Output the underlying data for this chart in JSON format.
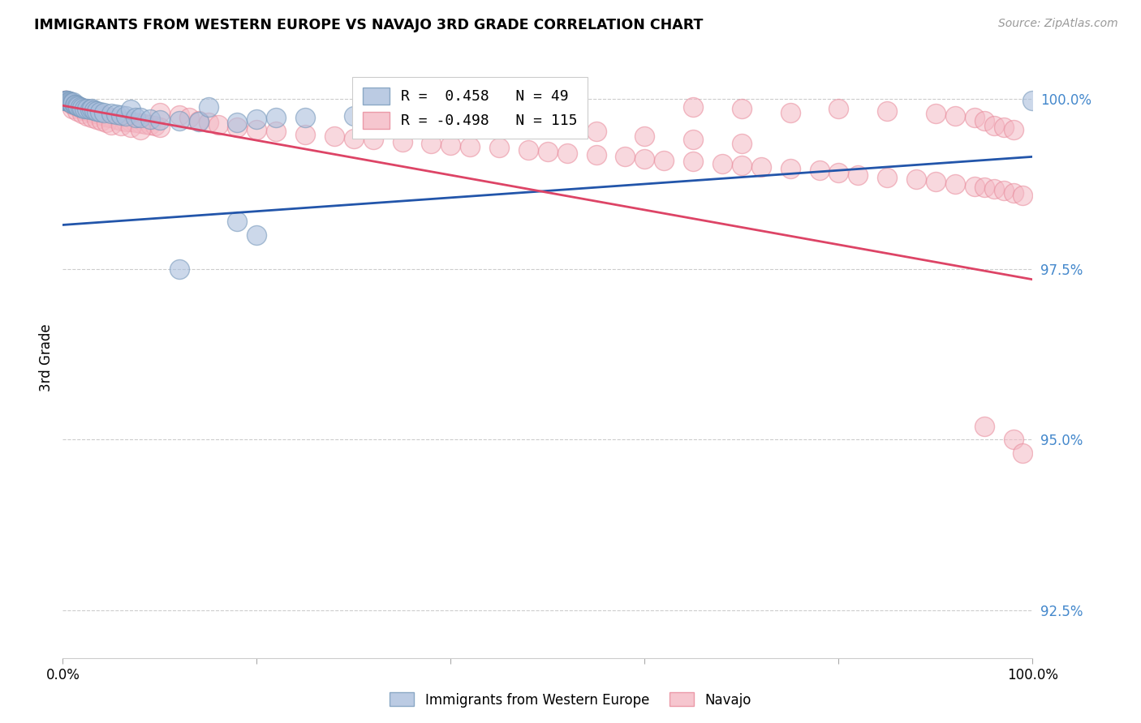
{
  "title": "IMMIGRANTS FROM WESTERN EUROPE VS NAVAJO 3RD GRADE CORRELATION CHART",
  "source_text": "Source: ZipAtlas.com",
  "ylabel": "3rd Grade",
  "legend_labels": [
    "Immigrants from Western Europe",
    "Navajo"
  ],
  "blue_r_label": "R =  0.458",
  "blue_n_label": "N = 49",
  "pink_r_label": "R = -0.498",
  "pink_n_label": "N = 115",
  "xlim": [
    0.0,
    1.0
  ],
  "ylim": [
    0.918,
    1.006
  ],
  "yticks": [
    0.925,
    0.95,
    0.975,
    1.0
  ],
  "ytick_labels": [
    "92.5%",
    "95.0%",
    "97.5%",
    "100.0%"
  ],
  "xticks": [
    0.0,
    0.2,
    0.4,
    0.6,
    0.8,
    1.0
  ],
  "xtick_labels": [
    "0.0%",
    "",
    "",
    "",
    "",
    "100.0%"
  ],
  "background_color": "#ffffff",
  "blue_fill_color": "#aabfdd",
  "blue_edge_color": "#7799bb",
  "pink_fill_color": "#f4b8c4",
  "pink_edge_color": "#e88899",
  "blue_line_color": "#2255aa",
  "pink_line_color": "#dd4466",
  "tick_color": "#aaaaaa",
  "grid_color": "#cccccc",
  "yticklabel_color": "#4488cc",
  "blue_trendline_x": [
    0.0,
    1.0
  ],
  "blue_trendline_y": [
    0.9815,
    0.9915
  ],
  "pink_trendline_x": [
    0.0,
    1.0
  ],
  "pink_trendline_y": [
    0.999,
    0.9735
  ],
  "blue_dots": [
    [
      0.002,
      0.9998
    ],
    [
      0.003,
      0.9998
    ],
    [
      0.004,
      0.9997
    ],
    [
      0.005,
      0.9997
    ],
    [
      0.006,
      0.9996
    ],
    [
      0.007,
      0.9996
    ],
    [
      0.008,
      0.9995
    ],
    [
      0.009,
      0.9994
    ],
    [
      0.01,
      0.9993
    ],
    [
      0.011,
      0.9995
    ],
    [
      0.012,
      0.9992
    ],
    [
      0.013,
      0.9991
    ],
    [
      0.015,
      0.999
    ],
    [
      0.016,
      0.9989
    ],
    [
      0.018,
      0.9988
    ],
    [
      0.02,
      0.9987
    ],
    [
      0.022,
      0.9986
    ],
    [
      0.025,
      0.9985
    ],
    [
      0.028,
      0.9984
    ],
    [
      0.03,
      0.9985
    ],
    [
      0.032,
      0.9983
    ],
    [
      0.035,
      0.9982
    ],
    [
      0.038,
      0.9981
    ],
    [
      0.042,
      0.998
    ],
    [
      0.05,
      0.9978
    ],
    [
      0.055,
      0.9977
    ],
    [
      0.06,
      0.9976
    ],
    [
      0.065,
      0.9975
    ],
    [
      0.07,
      0.9984
    ],
    [
      0.075,
      0.9973
    ],
    [
      0.08,
      0.9972
    ],
    [
      0.09,
      0.997
    ],
    [
      0.1,
      0.9969
    ],
    [
      0.12,
      0.9968
    ],
    [
      0.14,
      0.9967
    ],
    [
      0.15,
      0.9988
    ],
    [
      0.18,
      0.9965
    ],
    [
      0.2,
      0.997
    ],
    [
      0.22,
      0.9973
    ],
    [
      0.25,
      0.9972
    ],
    [
      0.3,
      0.9975
    ],
    [
      0.35,
      0.9971
    ],
    [
      0.4,
      0.9969
    ],
    [
      0.45,
      0.9968
    ],
    [
      0.5,
      0.9967
    ],
    [
      0.18,
      0.982
    ],
    [
      0.2,
      0.98
    ],
    [
      0.12,
      0.975
    ],
    [
      1.0,
      0.9998
    ]
  ],
  "pink_dots": [
    [
      0.002,
      0.9998
    ],
    [
      0.003,
      0.9997
    ],
    [
      0.004,
      0.9997
    ],
    [
      0.005,
      0.9996
    ],
    [
      0.006,
      0.9996
    ],
    [
      0.007,
      0.9995
    ],
    [
      0.008,
      0.9994
    ],
    [
      0.009,
      0.9993
    ],
    [
      0.01,
      0.9992
    ],
    [
      0.011,
      0.9991
    ],
    [
      0.012,
      0.999
    ],
    [
      0.013,
      0.999
    ],
    [
      0.015,
      0.9989
    ],
    [
      0.016,
      0.9988
    ],
    [
      0.017,
      0.9987
    ],
    [
      0.018,
      0.9986
    ],
    [
      0.019,
      0.9985
    ],
    [
      0.02,
      0.9984
    ],
    [
      0.022,
      0.9983
    ],
    [
      0.025,
      0.9982
    ],
    [
      0.028,
      0.9981
    ],
    [
      0.03,
      0.998
    ],
    [
      0.032,
      0.9979
    ],
    [
      0.035,
      0.9978
    ],
    [
      0.038,
      0.9977
    ],
    [
      0.04,
      0.9976
    ],
    [
      0.042,
      0.9975
    ],
    [
      0.045,
      0.9974
    ],
    [
      0.048,
      0.9973
    ],
    [
      0.05,
      0.9972
    ],
    [
      0.055,
      0.997
    ],
    [
      0.06,
      0.9968
    ],
    [
      0.065,
      0.9967
    ],
    [
      0.07,
      0.9966
    ],
    [
      0.075,
      0.9965
    ],
    [
      0.08,
      0.9964
    ],
    [
      0.085,
      0.9963
    ],
    [
      0.09,
      0.9962
    ],
    [
      0.095,
      0.996
    ],
    [
      0.1,
      0.9958
    ],
    [
      0.01,
      0.9985
    ],
    [
      0.015,
      0.9982
    ],
    [
      0.02,
      0.9978
    ],
    [
      0.025,
      0.9975
    ],
    [
      0.03,
      0.9972
    ],
    [
      0.035,
      0.997
    ],
    [
      0.04,
      0.9968
    ],
    [
      0.045,
      0.9965
    ],
    [
      0.05,
      0.9962
    ],
    [
      0.06,
      0.996
    ],
    [
      0.07,
      0.9958
    ],
    [
      0.08,
      0.9955
    ],
    [
      0.1,
      0.998
    ],
    [
      0.12,
      0.9976
    ],
    [
      0.13,
      0.9972
    ],
    [
      0.14,
      0.9968
    ],
    [
      0.15,
      0.9965
    ],
    [
      0.16,
      0.9962
    ],
    [
      0.18,
      0.9958
    ],
    [
      0.2,
      0.9955
    ],
    [
      0.22,
      0.9952
    ],
    [
      0.25,
      0.9948
    ],
    [
      0.28,
      0.9945
    ],
    [
      0.3,
      0.9942
    ],
    [
      0.32,
      0.994
    ],
    [
      0.35,
      0.9937
    ],
    [
      0.38,
      0.9934
    ],
    [
      0.4,
      0.9932
    ],
    [
      0.42,
      0.993
    ],
    [
      0.45,
      0.9928
    ],
    [
      0.48,
      0.9925
    ],
    [
      0.5,
      0.9922
    ],
    [
      0.52,
      0.992
    ],
    [
      0.55,
      0.9918
    ],
    [
      0.58,
      0.9915
    ],
    [
      0.6,
      0.9912
    ],
    [
      0.62,
      0.991
    ],
    [
      0.65,
      0.9908
    ],
    [
      0.68,
      0.9905
    ],
    [
      0.7,
      0.9902
    ],
    [
      0.72,
      0.99
    ],
    [
      0.75,
      0.9898
    ],
    [
      0.78,
      0.9895
    ],
    [
      0.8,
      0.9892
    ],
    [
      0.82,
      0.9888
    ],
    [
      0.85,
      0.9885
    ],
    [
      0.88,
      0.9882
    ],
    [
      0.9,
      0.9878
    ],
    [
      0.92,
      0.9875
    ],
    [
      0.94,
      0.9872
    ],
    [
      0.95,
      0.987
    ],
    [
      0.96,
      0.9868
    ],
    [
      0.97,
      0.9865
    ],
    [
      0.98,
      0.9862
    ],
    [
      0.99,
      0.9858
    ],
    [
      0.65,
      0.9988
    ],
    [
      0.7,
      0.9985
    ],
    [
      0.75,
      0.998
    ],
    [
      0.8,
      0.9985
    ],
    [
      0.85,
      0.9982
    ],
    [
      0.9,
      0.9978
    ],
    [
      0.92,
      0.9975
    ],
    [
      0.94,
      0.9972
    ],
    [
      0.95,
      0.9968
    ],
    [
      0.96,
      0.996
    ],
    [
      0.97,
      0.9958
    ],
    [
      0.98,
      0.9955
    ],
    [
      0.45,
      0.9968
    ],
    [
      0.5,
      0.996
    ],
    [
      0.55,
      0.9952
    ],
    [
      0.6,
      0.9945
    ],
    [
      0.65,
      0.994
    ],
    [
      0.7,
      0.9935
    ],
    [
      0.98,
      0.95
    ],
    [
      0.99,
      0.948
    ],
    [
      0.95,
      0.952
    ]
  ]
}
